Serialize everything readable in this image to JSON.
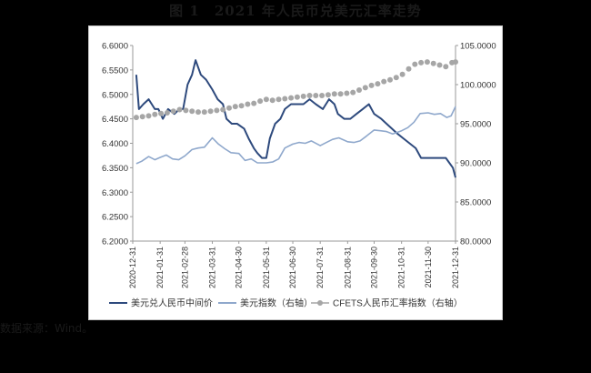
{
  "figure_title": "图 1　2021 年人民币兑美元汇率走势",
  "source_note": "数据来源：Wind。",
  "chart_data": {
    "type": "line",
    "title": "图 1　2021 年人民币兑美元汇率走势",
    "x_tick_labels": [
      "2020-12-31",
      "2021-01-31",
      "2021-02-28",
      "2021-03-31",
      "2021-04-30",
      "2021-05-31",
      "2021-06-30",
      "2021-07-31",
      "2021-08-31",
      "2021-09-30",
      "2021-10-31",
      "2021-11-30",
      "2021-12-31"
    ],
    "x_range": [
      "2020-12-31",
      "2021-12-31"
    ],
    "left_axis": {
      "min": 6.2,
      "max": 6.6,
      "step": 0.05,
      "decimals": 4
    },
    "right_axis": {
      "min": 80,
      "max": 105,
      "step": 5,
      "decimals": 4
    },
    "grid": false,
    "legend_position": "bottom",
    "series": [
      {
        "name": "美元兑人民币中间价",
        "axis": "left",
        "color": "#2e4a7d",
        "style": "line",
        "points": [
          [
            "2021-01-04",
            6.54
          ],
          [
            "2021-01-07",
            6.47
          ],
          [
            "2021-01-12",
            6.48
          ],
          [
            "2021-01-18",
            6.49
          ],
          [
            "2021-01-25",
            6.47
          ],
          [
            "2021-01-29",
            6.47
          ],
          [
            "2021-02-03",
            6.45
          ],
          [
            "2021-02-09",
            6.47
          ],
          [
            "2021-02-16",
            6.46
          ],
          [
            "2021-02-22",
            6.47
          ],
          [
            "2021-02-26",
            6.47
          ],
          [
            "2021-03-03",
            6.52
          ],
          [
            "2021-03-08",
            6.54
          ],
          [
            "2021-03-12",
            6.57
          ],
          [
            "2021-03-18",
            6.54
          ],
          [
            "2021-03-24",
            6.53
          ],
          [
            "2021-03-31",
            6.51
          ],
          [
            "2021-04-06",
            6.49
          ],
          [
            "2021-04-12",
            6.48
          ],
          [
            "2021-04-16",
            6.45
          ],
          [
            "2021-04-22",
            6.44
          ],
          [
            "2021-04-28",
            6.44
          ],
          [
            "2021-05-06",
            6.43
          ],
          [
            "2021-05-11",
            6.41
          ],
          [
            "2021-05-17",
            6.39
          ],
          [
            "2021-05-21",
            6.38
          ],
          [
            "2021-05-26",
            6.37
          ],
          [
            "2021-05-31",
            6.37
          ],
          [
            "2021-06-04",
            6.41
          ],
          [
            "2021-06-10",
            6.44
          ],
          [
            "2021-06-16",
            6.45
          ],
          [
            "2021-06-21",
            6.47
          ],
          [
            "2021-06-28",
            6.48
          ],
          [
            "2021-07-05",
            6.48
          ],
          [
            "2021-07-12",
            6.48
          ],
          [
            "2021-07-19",
            6.49
          ],
          [
            "2021-07-26",
            6.48
          ],
          [
            "2021-08-03",
            6.47
          ],
          [
            "2021-08-10",
            6.49
          ],
          [
            "2021-08-16",
            6.48
          ],
          [
            "2021-08-20",
            6.46
          ],
          [
            "2021-08-27",
            6.45
          ],
          [
            "2021-09-03",
            6.45
          ],
          [
            "2021-09-10",
            6.46
          ],
          [
            "2021-09-17",
            6.47
          ],
          [
            "2021-09-24",
            6.48
          ],
          [
            "2021-09-30",
            6.46
          ],
          [
            "2021-10-08",
            6.45
          ],
          [
            "2021-10-14",
            6.44
          ],
          [
            "2021-10-20",
            6.43
          ],
          [
            "2021-10-26",
            6.42
          ],
          [
            "2021-11-02",
            6.41
          ],
          [
            "2021-11-09",
            6.4
          ],
          [
            "2021-11-16",
            6.39
          ],
          [
            "2021-11-22",
            6.37
          ],
          [
            "2021-11-30",
            6.37
          ],
          [
            "2021-12-06",
            6.37
          ],
          [
            "2021-12-13",
            6.37
          ],
          [
            "2021-12-20",
            6.37
          ],
          [
            "2021-12-24",
            6.36
          ],
          [
            "2021-12-28",
            6.35
          ],
          [
            "2021-12-31",
            6.33
          ]
        ]
      },
      {
        "name": "美元指数（右轴）",
        "axis": "right",
        "color": "#8fa8cc",
        "style": "line",
        "points": [
          [
            "2021-01-04",
            89.9
          ],
          [
            "2021-01-10",
            90.2
          ],
          [
            "2021-01-18",
            90.8
          ],
          [
            "2021-01-25",
            90.4
          ],
          [
            "2021-01-31",
            90.7
          ],
          [
            "2021-02-07",
            91.0
          ],
          [
            "2021-02-14",
            90.5
          ],
          [
            "2021-02-21",
            90.4
          ],
          [
            "2021-02-28",
            90.9
          ],
          [
            "2021-03-08",
            91.7
          ],
          [
            "2021-03-15",
            91.9
          ],
          [
            "2021-03-22",
            92.0
          ],
          [
            "2021-03-31",
            93.2
          ],
          [
            "2021-04-07",
            92.4
          ],
          [
            "2021-04-14",
            91.8
          ],
          [
            "2021-04-21",
            91.3
          ],
          [
            "2021-04-30",
            91.2
          ],
          [
            "2021-05-07",
            90.3
          ],
          [
            "2021-05-14",
            90.5
          ],
          [
            "2021-05-21",
            90.0
          ],
          [
            "2021-05-31",
            90.0
          ],
          [
            "2021-06-07",
            90.1
          ],
          [
            "2021-06-14",
            90.5
          ],
          [
            "2021-06-21",
            91.9
          ],
          [
            "2021-06-30",
            92.4
          ],
          [
            "2021-07-07",
            92.6
          ],
          [
            "2021-07-14",
            92.5
          ],
          [
            "2021-07-21",
            92.8
          ],
          [
            "2021-07-31",
            92.2
          ],
          [
            "2021-08-07",
            92.6
          ],
          [
            "2021-08-14",
            93.0
          ],
          [
            "2021-08-21",
            93.2
          ],
          [
            "2021-08-31",
            92.7
          ],
          [
            "2021-09-07",
            92.6
          ],
          [
            "2021-09-14",
            92.8
          ],
          [
            "2021-09-21",
            93.4
          ],
          [
            "2021-09-30",
            94.2
          ],
          [
            "2021-10-07",
            94.1
          ],
          [
            "2021-10-14",
            94.0
          ],
          [
            "2021-10-21",
            93.7
          ],
          [
            "2021-10-31",
            94.1
          ],
          [
            "2021-11-07",
            94.5
          ],
          [
            "2021-11-14",
            95.2
          ],
          [
            "2021-11-21",
            96.3
          ],
          [
            "2021-11-30",
            96.4
          ],
          [
            "2021-12-07",
            96.2
          ],
          [
            "2021-12-14",
            96.3
          ],
          [
            "2021-12-21",
            95.8
          ],
          [
            "2021-12-26",
            96.0
          ],
          [
            "2021-12-31",
            97.2
          ]
        ]
      },
      {
        "name": "CFETS人民币汇率指数（右轴）",
        "axis": "right",
        "color": "#a6a6a6",
        "style": "dots",
        "points": [
          [
            "2021-01-04",
            95.8
          ],
          [
            "2021-01-11",
            95.9
          ],
          [
            "2021-01-18",
            96.0
          ],
          [
            "2021-01-25",
            96.2
          ],
          [
            "2021-02-01",
            96.3
          ],
          [
            "2021-02-08",
            96.4
          ],
          [
            "2021-02-15",
            96.6
          ],
          [
            "2021-02-22",
            96.8
          ],
          [
            "2021-03-01",
            96.7
          ],
          [
            "2021-03-08",
            96.6
          ],
          [
            "2021-03-15",
            96.5
          ],
          [
            "2021-03-22",
            96.5
          ],
          [
            "2021-03-29",
            96.6
          ],
          [
            "2021-04-05",
            96.7
          ],
          [
            "2021-04-12",
            96.8
          ],
          [
            "2021-04-19",
            97.0
          ],
          [
            "2021-04-26",
            97.2
          ],
          [
            "2021-05-03",
            97.3
          ],
          [
            "2021-05-10",
            97.5
          ],
          [
            "2021-05-17",
            97.6
          ],
          [
            "2021-05-24",
            97.9
          ],
          [
            "2021-05-31",
            98.1
          ],
          [
            "2021-06-07",
            98.0
          ],
          [
            "2021-06-14",
            98.1
          ],
          [
            "2021-06-21",
            98.2
          ],
          [
            "2021-06-28",
            98.3
          ],
          [
            "2021-07-05",
            98.4
          ],
          [
            "2021-07-12",
            98.5
          ],
          [
            "2021-07-19",
            98.6
          ],
          [
            "2021-07-26",
            98.6
          ],
          [
            "2021-08-02",
            98.6
          ],
          [
            "2021-08-09",
            98.7
          ],
          [
            "2021-08-16",
            98.8
          ],
          [
            "2021-08-23",
            98.8
          ],
          [
            "2021-08-30",
            98.9
          ],
          [
            "2021-09-06",
            99.0
          ],
          [
            "2021-09-13",
            99.3
          ],
          [
            "2021-09-20",
            99.6
          ],
          [
            "2021-09-27",
            99.9
          ],
          [
            "2021-10-04",
            100.1
          ],
          [
            "2021-10-11",
            100.4
          ],
          [
            "2021-10-18",
            100.6
          ],
          [
            "2021-10-25",
            100.9
          ],
          [
            "2021-11-01",
            101.3
          ],
          [
            "2021-11-08",
            102.0
          ],
          [
            "2021-11-15",
            102.6
          ],
          [
            "2021-11-22",
            102.8
          ],
          [
            "2021-11-29",
            102.9
          ],
          [
            "2021-12-06",
            102.7
          ],
          [
            "2021-12-13",
            102.5
          ],
          [
            "2021-12-20",
            102.3
          ],
          [
            "2021-12-27",
            102.8
          ],
          [
            "2021-12-31",
            102.9
          ]
        ]
      }
    ]
  }
}
